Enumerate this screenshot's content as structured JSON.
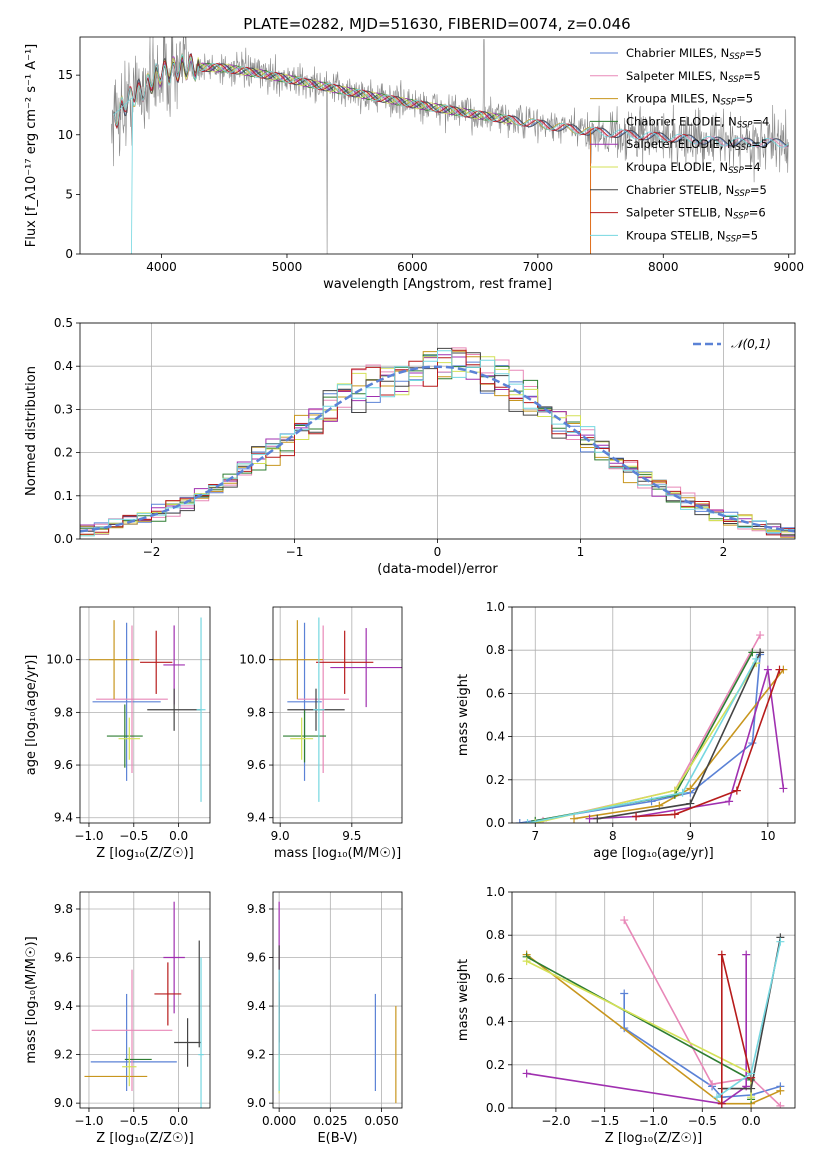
{
  "title": "PLATE=0282, MJD=51630, FIBERID=0074, z=0.046",
  "colors": {
    "CM": "#5b82d6",
    "SM": "#e888b8",
    "KM": "#c8961e",
    "CE": "#2e7d32",
    "SE": "#a030b0",
    "KE": "#d4e157",
    "CS": "#444444",
    "SS": "#b71c1c",
    "KS": "#76d7e0",
    "data": "#888888",
    "orange": "#e07020",
    "normal": "#5b82d6"
  },
  "chart_data": [
    {
      "id": "spectrum",
      "type": "line",
      "xlabel": "wavelength [Angstrom, rest frame]",
      "ylabel": "Flux [f_λ10⁻¹⁷ erg cm⁻² s⁻¹ A⁻¹]",
      "xlim": [
        3350,
        9050
      ],
      "ylim": [
        0,
        18.2
      ],
      "xticks": [
        "4000",
        "5000",
        "6000",
        "7000",
        "8000",
        "9000"
      ],
      "yticks": [
        "0",
        "5",
        "10",
        "15"
      ],
      "legend_position": "top-right",
      "legend": [
        {
          "key": "CM",
          "name": "Chabrier MILES, N",
          "sub": "SSP",
          "tail": "=5"
        },
        {
          "key": "SM",
          "name": "Salpeter MILES, N",
          "sub": "SSP",
          "tail": "=5"
        },
        {
          "key": "KM",
          "name": "Kroupa MILES, N",
          "sub": "SSP",
          "tail": "=5"
        },
        {
          "key": "CE",
          "name": "Chabrier ELODIE, N",
          "sub": "SSP",
          "tail": "=4"
        },
        {
          "key": "SE",
          "name": "Salpeter ELODIE, N",
          "sub": "SSP",
          "tail": "=5"
        },
        {
          "key": "KE",
          "name": "Kroupa ELODIE, N",
          "sub": "SSP",
          "tail": "=4"
        },
        {
          "key": "CS",
          "name": "Chabrier STELIB, N",
          "sub": "SSP",
          "tail": "=5"
        },
        {
          "key": "SS",
          "name": "Salpeter STELIB, N",
          "sub": "SSP",
          "tail": "=6"
        },
        {
          "key": "KS",
          "name": "Kroupa STELIB, N",
          "sub": "SSP",
          "tail": "=5"
        }
      ],
      "continuum": [
        [
          3600,
          11.2
        ],
        [
          3800,
          13.5
        ],
        [
          4000,
          15.2
        ],
        [
          4200,
          15.7
        ],
        [
          4500,
          15.6
        ],
        [
          4800,
          15.1
        ],
        [
          5000,
          14.7
        ],
        [
          5500,
          13.6
        ],
        [
          6000,
          12.6
        ],
        [
          6500,
          11.7
        ],
        [
          7000,
          10.9
        ],
        [
          7400,
          10.3
        ],
        [
          8000,
          9.8
        ],
        [
          8500,
          9.4
        ],
        [
          9000,
          9.3
        ]
      ]
    },
    {
      "id": "residuals",
      "type": "step",
      "xlabel": "(data-model)/error",
      "ylabel": "Normed distribution",
      "xlim": [
        -2.5,
        2.5
      ],
      "ylim": [
        0,
        0.5
      ],
      "xticks": [
        "−2",
        "−1",
        "0",
        "1",
        "2"
      ],
      "yticks": [
        "0.0",
        "0.1",
        "0.2",
        "0.3",
        "0.4",
        "0.5"
      ],
      "legend": "𝒩(0,1)",
      "legend_position": "top-right",
      "bin_width": 0.1
    },
    {
      "id": "age_vs_Z",
      "type": "errorbar",
      "xlabel": "Z [log₁₀(Z/Z☉)]",
      "ylabel": "age  [log₁₀(age/yr)]",
      "xlim": [
        -1.1,
        0.35
      ],
      "ylim": [
        9.38,
        10.2
      ],
      "xticks": [
        "−1.0",
        "−0.5",
        "0.0"
      ],
      "yticks": [
        "9.4",
        "9.6",
        "9.8",
        "10.0"
      ],
      "points": [
        {
          "c": "CM",
          "x": -0.58,
          "xe": 0.38,
          "y": 9.84,
          "ye": 0.3
        },
        {
          "c": "SM",
          "x": -0.52,
          "xe": 0.4,
          "y": 9.85,
          "ye": 0.28
        },
        {
          "c": "KM",
          "x": -0.72,
          "xe": 0.28,
          "y": 10.0,
          "ye": 0.15
        },
        {
          "c": "CE",
          "x": -0.6,
          "xe": 0.2,
          "y": 9.71,
          "ye": 0.12
        },
        {
          "c": "SE",
          "x": -0.05,
          "xe": 0.12,
          "y": 9.98,
          "ye": 0.15
        },
        {
          "c": "KE",
          "x": -0.55,
          "xe": 0.12,
          "y": 9.7,
          "ye": 0.08
        },
        {
          "c": "CS",
          "x": -0.05,
          "xe": 0.3,
          "y": 9.81,
          "ye": 0.08
        },
        {
          "c": "SS",
          "x": -0.25,
          "xe": 0.18,
          "y": 9.99,
          "ye": 0.12
        },
        {
          "c": "KS",
          "x": 0.25,
          "xe": 0.05,
          "y": 9.81,
          "ye": 0.35
        }
      ]
    },
    {
      "id": "age_vs_mass",
      "type": "errorbar",
      "xlabel": "mass [log₁₀(M/M☉)]",
      "ylabel": "",
      "xlim": [
        8.95,
        9.85
      ],
      "ylim": [
        9.38,
        10.2
      ],
      "xticks": [
        "9.0",
        "9.5"
      ],
      "yticks": [
        "9.4",
        "9.6",
        "9.8",
        "10.0"
      ],
      "points": [
        {
          "c": "CM",
          "x": 9.17,
          "xe": 0.12,
          "y": 9.84,
          "ye": 0.3
        },
        {
          "c": "SM",
          "x": 9.3,
          "xe": 0.18,
          "y": 9.85,
          "ye": 0.28
        },
        {
          "c": "KM",
          "x": 9.12,
          "xe": 0.18,
          "y": 10.0,
          "ye": 0.15
        },
        {
          "c": "CE",
          "x": 9.17,
          "xe": 0.15,
          "y": 9.71,
          "ye": 0.1
        },
        {
          "c": "SE",
          "x": 9.6,
          "xe": 0.25,
          "y": 9.97,
          "ye": 0.15
        },
        {
          "c": "KE",
          "x": 9.15,
          "xe": 0.08,
          "y": 9.7,
          "ye": 0.08
        },
        {
          "c": "CS",
          "x": 9.25,
          "xe": 0.2,
          "y": 9.81,
          "ye": 0.08
        },
        {
          "c": "SS",
          "x": 9.45,
          "xe": 0.2,
          "y": 9.99,
          "ye": 0.12
        },
        {
          "c": "KS",
          "x": 9.27,
          "xe": 0.04,
          "y": 9.81,
          "ye": 0.35
        }
      ]
    },
    {
      "id": "mw_vs_age",
      "type": "line",
      "xlabel": "age  [log₁₀(age/yr)]",
      "ylabel": "mass weight",
      "xlim": [
        6.7,
        10.35
      ],
      "ylim": [
        0,
        1.0
      ],
      "xticks": [
        "7",
        "8",
        "9",
        "10"
      ],
      "yticks": [
        "0.0",
        "0.2",
        "0.4",
        "0.6",
        "0.8",
        "1.0"
      ],
      "series": [
        {
          "c": "CM",
          "x": [
            6.8,
            8.5,
            9.0,
            9.8,
            9.9
          ],
          "y": [
            0.0,
            0.1,
            0.14,
            0.37,
            0.78
          ]
        },
        {
          "c": "SM",
          "x": [
            7.1,
            8.8,
            9.9
          ],
          "y": [
            0.01,
            0.15,
            0.87
          ]
        },
        {
          "c": "KM",
          "x": [
            7.5,
            8.6,
            9.0,
            10.2
          ],
          "y": [
            0.02,
            0.08,
            0.16,
            0.71
          ]
        },
        {
          "c": "CE",
          "x": [
            7.0,
            8.8,
            9.8
          ],
          "y": [
            0.01,
            0.13,
            0.79
          ]
        },
        {
          "c": "SE",
          "x": [
            7.7,
            8.3,
            9.5,
            10.0,
            10.2
          ],
          "y": [
            0.02,
            0.03,
            0.1,
            0.71,
            0.16
          ]
        },
        {
          "c": "KE",
          "x": [
            7.0,
            8.8,
            9.85
          ],
          "y": [
            0.0,
            0.15,
            0.74
          ]
        },
        {
          "c": "CS",
          "x": [
            7.8,
            9.0,
            9.9
          ],
          "y": [
            0.02,
            0.09,
            0.79
          ]
        },
        {
          "c": "SS",
          "x": [
            8.3,
            8.8,
            9.6,
            10.15
          ],
          "y": [
            0.03,
            0.04,
            0.15,
            0.71
          ]
        },
        {
          "c": "KS",
          "x": [
            6.9,
            8.9,
            9.85
          ],
          "y": [
            0.0,
            0.14,
            0.76
          ]
        }
      ]
    },
    {
      "id": "mass_vs_Z",
      "type": "errorbar",
      "xlabel": "Z [log₁₀(Z/Z☉)]",
      "ylabel": "mass [log₁₀(M/M☉)]",
      "xlim": [
        -1.1,
        0.35
      ],
      "ylim": [
        8.98,
        9.87
      ],
      "xticks": [
        "−1.0",
        "−0.5",
        "0.0"
      ],
      "yticks": [
        "9.0",
        "9.2",
        "9.4",
        "9.6",
        "9.8"
      ],
      "points": [
        {
          "c": "CM",
          "x": -0.5,
          "xe": 0.48,
          "y": 9.17,
          "ye": 0.0
        },
        {
          "c": "CM",
          "x": -0.58,
          "xe": 0.0,
          "y": 9.25,
          "ye": 0.2
        },
        {
          "c": "SM",
          "x": -0.52,
          "xe": 0.45,
          "y": 9.3,
          "ye": 0.25
        },
        {
          "c": "KM",
          "x": -0.7,
          "xe": 0.35,
          "y": 9.11,
          "ye": 0.0
        },
        {
          "c": "CE",
          "x": -0.45,
          "xe": 0.15,
          "y": 9.18,
          "ye": 0.0
        },
        {
          "c": "SE",
          "x": -0.05,
          "xe": 0.12,
          "y": 9.6,
          "ye": 0.23
        },
        {
          "c": "KE",
          "x": -0.55,
          "xe": 0.08,
          "y": 9.15,
          "ye": 0.08
        },
        {
          "c": "CS",
          "x": 0.1,
          "xe": 0.15,
          "y": 9.25,
          "ye": 0.1
        },
        {
          "c": "CS",
          "x": 0.23,
          "xe": 0.0,
          "y": 9.45,
          "ye": 0.22
        },
        {
          "c": "SS",
          "x": -0.12,
          "xe": 0.15,
          "y": 9.45,
          "ye": 0.13
        },
        {
          "c": "KS",
          "x": 0.25,
          "xe": 0.03,
          "y": 9.2,
          "ye": 0.4
        }
      ]
    },
    {
      "id": "mass_vs_ebv",
      "type": "errorbar",
      "xlabel": "E(B-V)",
      "ylabel": "",
      "xlim": [
        -0.003,
        0.06
      ],
      "ylim": [
        8.98,
        9.87
      ],
      "xticks": [
        "0.000",
        "0.025",
        "0.050"
      ],
      "yticks": [
        "9.0",
        "9.2",
        "9.4",
        "9.6",
        "9.8"
      ],
      "points": [
        {
          "c": "CM",
          "x": 0.047,
          "xe": 0,
          "y": 9.25,
          "ye": 0.2
        },
        {
          "c": "SE",
          "x": 0.0,
          "xe": 0,
          "y": 9.6,
          "ye": 0.23
        },
        {
          "c": "CS",
          "x": 0.0,
          "xe": 0,
          "y": 9.45,
          "ye": 0.2
        },
        {
          "c": "SS",
          "x": 0.0,
          "xe": 0,
          "y": 9.35,
          "ye": 0.15
        },
        {
          "c": "KE",
          "x": 0.0,
          "xe": 0,
          "y": 9.12,
          "ye": 0.08
        },
        {
          "c": "KS",
          "x": 0.0,
          "xe": 0,
          "y": 9.3,
          "ye": 0.25
        },
        {
          "c": "KM",
          "x": 0.057,
          "xe": 0,
          "y": 9.2,
          "ye": 0.2
        }
      ]
    },
    {
      "id": "mw_vs_Z",
      "type": "line",
      "xlabel": "Z [log₁₀(Z/Z☉)]",
      "ylabel": "mass weight",
      "xlim": [
        -2.45,
        0.45
      ],
      "ylim": [
        0,
        1.0
      ],
      "xticks": [
        "−2.0",
        "−1.5",
        "−1.0",
        "−0.5",
        "0.0"
      ],
      "yticks": [
        "0.0",
        "0.2",
        "0.4",
        "0.6",
        "0.8",
        "1.0"
      ],
      "series": [
        {
          "c": "CM",
          "x": [
            -1.3,
            -1.3,
            -0.4,
            -0.3,
            0.0,
            0.3
          ],
          "y": [
            0.53,
            0.37,
            0.1,
            0.05,
            0.06,
            0.1
          ]
        },
        {
          "c": "SM",
          "x": [
            -1.3,
            -0.4,
            0.0,
            0.3
          ],
          "y": [
            0.87,
            0.11,
            0.14,
            0.01
          ]
        },
        {
          "c": "KM",
          "x": [
            -2.3,
            -0.3,
            0.0,
            0.3
          ],
          "y": [
            0.71,
            0.02,
            0.02,
            0.08
          ]
        },
        {
          "c": "CE",
          "x": [
            -2.3,
            0.0,
            0.0
          ],
          "y": [
            0.7,
            0.13,
            0.04
          ]
        },
        {
          "c": "SE",
          "x": [
            -2.3,
            -0.3,
            -0.05,
            -0.05
          ],
          "y": [
            0.16,
            0.02,
            0.1,
            0.71
          ]
        },
        {
          "c": "KE",
          "x": [
            -2.3,
            0.0,
            0.0
          ],
          "y": [
            0.68,
            0.16,
            0.05
          ]
        },
        {
          "c": "CS",
          "x": [
            -0.3,
            0.0,
            0.3
          ],
          "y": [
            0.09,
            0.09,
            0.79
          ]
        },
        {
          "c": "SS",
          "x": [
            -0.3,
            -0.3,
            0.0
          ],
          "y": [
            0.02,
            0.71,
            0.14
          ]
        },
        {
          "c": "KS",
          "x": [
            -0.35,
            0.0,
            0.3
          ],
          "y": [
            0.05,
            0.16,
            0.77
          ]
        }
      ]
    }
  ]
}
